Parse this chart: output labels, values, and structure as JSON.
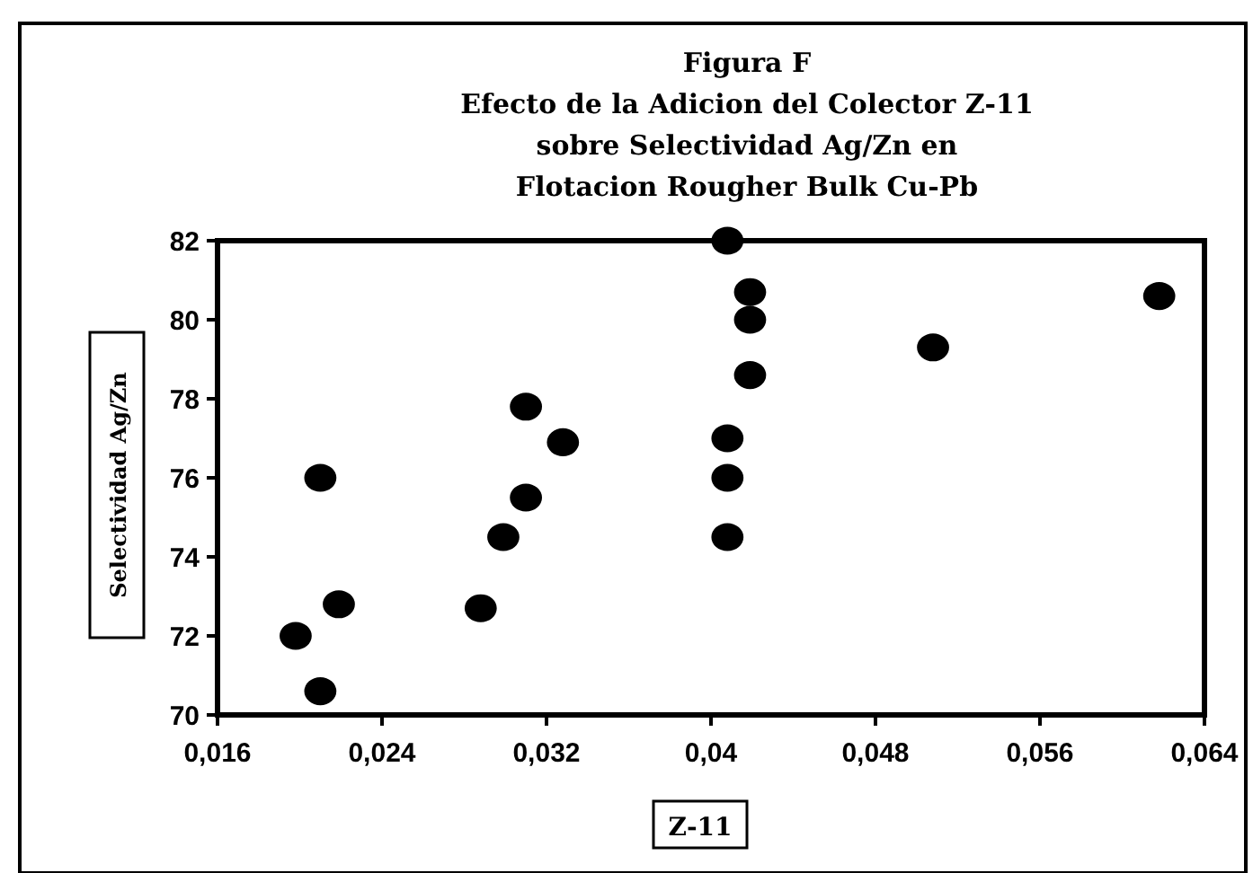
{
  "chart_data": {
    "type": "scatter",
    "title": "Figura F\nEfecto de la Adicion del Colector Z-11\nsobre Selectividad Ag/Zn en\nFlotacion Rougher Bulk Cu-Pb",
    "xlabel": "Z-11",
    "ylabel": "Selectividad Ag/Zn",
    "xlim": [
      0.016,
      0.064
    ],
    "xticks": [
      {
        "value": 0.016,
        "label": "0,016"
      },
      {
        "value": 0.024,
        "label": "0,024"
      },
      {
        "value": 0.032,
        "label": "0,032"
      },
      {
        "value": 0.04,
        "label": "0,04"
      },
      {
        "value": 0.048,
        "label": "0,048"
      },
      {
        "value": 0.056,
        "label": "0,056"
      },
      {
        "value": 0.064,
        "label": "0,064"
      }
    ],
    "ylim": [
      70,
      82
    ],
    "yticks": [
      70,
      72,
      74,
      76,
      78,
      80,
      82
    ],
    "marker": "circle",
    "grid": false,
    "series": [
      {
        "color": "#000000",
        "x": [
          0.021,
          0.0198,
          0.021,
          0.0219,
          0.0288,
          0.0299,
          0.031,
          0.031,
          0.0328,
          0.0408,
          0.0408,
          0.0408,
          0.0408,
          0.0419,
          0.0419,
          0.0419,
          0.0508,
          0.0618
        ],
        "values": [
          76.0,
          72.0,
          70.6,
          72.8,
          72.7,
          74.5,
          75.5,
          77.8,
          76.9,
          74.5,
          76.0,
          77.0,
          82.0,
          80.7,
          80.0,
          78.6,
          79.3,
          80.6
        ]
      }
    ]
  }
}
